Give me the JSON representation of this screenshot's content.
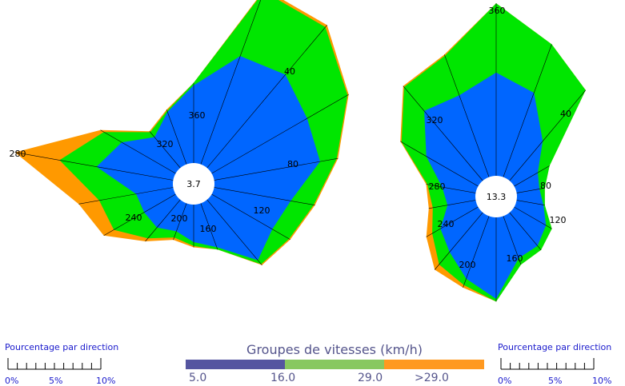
{
  "chart_data": [
    {
      "type": "radar",
      "calm_label": "3.7",
      "direction_labels": [
        "360",
        "40",
        "80",
        "120",
        "160",
        "200",
        "240",
        "280",
        "320"
      ],
      "directions_deg": [
        0,
        20,
        40,
        60,
        80,
        100,
        120,
        140,
        160,
        180,
        200,
        220,
        240,
        260,
        280,
        300,
        320,
        340
      ],
      "series": [
        {
          "color": "#0066ff",
          "values": [
            6.0,
            8.9,
            9.4,
            8.5,
            8.3,
            6.0,
            5.4,
            6.1,
            3.6,
            2.9,
            2.3,
            2.8,
            2.8,
            2.9,
            6.0,
            4.8,
            3.1,
            4.3
          ]
        },
        {
          "color": "#00e600",
          "values": [
            6.2,
            14.2,
            14.2,
            12.1,
            9.6,
            7.8,
            6.9,
            6.5,
            3.8,
            3.2,
            2.8,
            3.9,
            5.5,
            5.8,
            8.9,
            6.4,
            3.6,
            4.4
          ]
        },
        {
          "color": "#ff9900",
          "values": [
            6.2,
            14.4,
            14.4,
            12.2,
            9.7,
            7.9,
            7.0,
            6.6,
            3.8,
            3.3,
            3.0,
            4.2,
            6.4,
            7.4,
            12.4,
            6.7,
            3.7,
            4.5
          ]
        }
      ]
    },
    {
      "type": "radar",
      "calm_label": "13.3",
      "direction_labels": [
        "360",
        "40",
        "80",
        "120",
        "160",
        "200",
        "240",
        "280",
        "320"
      ],
      "directions_deg": [
        0,
        20,
        40,
        60,
        80,
        100,
        120,
        140,
        160,
        180,
        200,
        220,
        240,
        260,
        280,
        300,
        320,
        340
      ],
      "series": [
        {
          "color": "#0066ff",
          "values": [
            7.6,
            6.6,
            3.8,
            2.0,
            1.7,
            2.0,
            2.7,
            3.2,
            3.3,
            6.0,
            4.9,
            3.8,
            3.2,
            2.1,
            2.5,
            4.4,
            6.7,
            6.4
          ]
        },
        {
          "color": "#00e600",
          "values": [
            12.7,
            10.4,
            8.7,
            3.0,
            2.1,
            2.1,
            3.2,
            3.6,
            3.8,
            6.2,
            5.4,
            5.0,
            3.9,
            3.2,
            3.6,
            6.5,
            9.0,
            9.5
          ]
        },
        {
          "color": "#ff9900",
          "values": [
            12.7,
            10.4,
            8.7,
            3.0,
            2.1,
            2.1,
            3.2,
            3.6,
            3.8,
            6.2,
            5.6,
            5.5,
            4.4,
            3.5,
            3.7,
            6.6,
            9.1,
            9.6
          ]
        }
      ]
    }
  ],
  "legend": {
    "title": "Groupes de vitesses (km/h)",
    "items": [
      {
        "label": "5.0",
        "color": "#5555a0"
      },
      {
        "label": "16.0",
        "color": "#88c860"
      },
      {
        "label": "29.0",
        "color": "#ff9920"
      },
      {
        "label": ">29.0",
        "color": ""
      }
    ]
  },
  "scale_bars": [
    {
      "title": "Pourcentage par direction",
      "ticks": [
        "0%",
        "5%",
        "10%"
      ]
    },
    {
      "title": "Pourcentage par direction",
      "ticks": [
        "0%",
        "5%",
        "10%"
      ]
    }
  ]
}
